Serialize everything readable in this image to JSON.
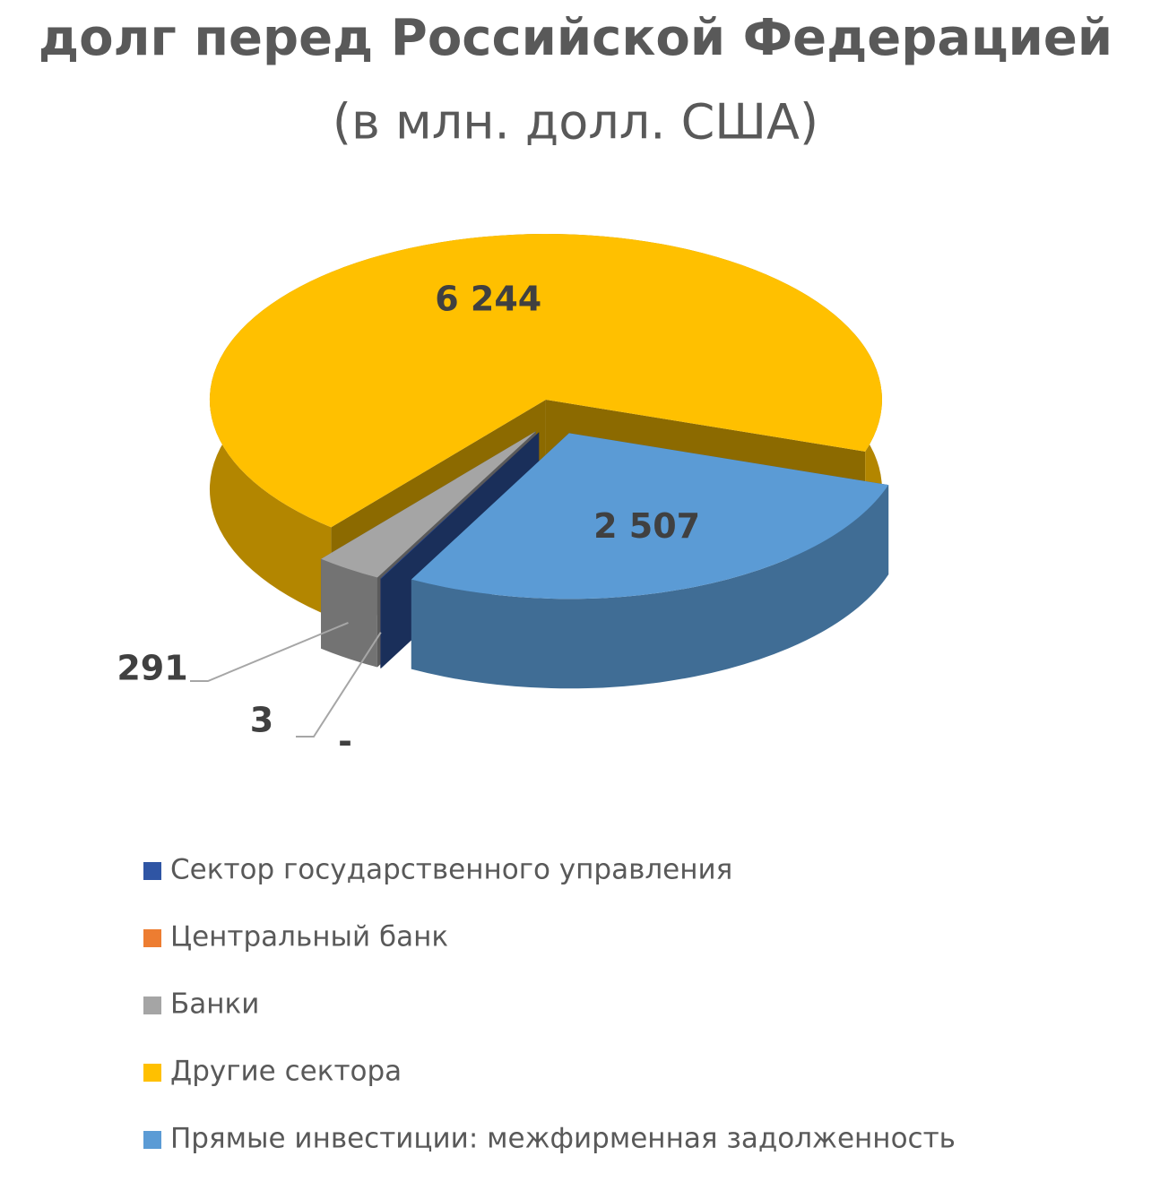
{
  "chart_data": {
    "type": "pie",
    "title": "долг перед Российской Федерацией",
    "subtitle": "(в млн. долл. США)",
    "categories": [
      "Сектор государственного управления",
      "Центральный банк",
      "Банки",
      "Другие сектора",
      "Прямые инвестиции: межфирменная задолженность"
    ],
    "values": [
      3,
      0,
      291,
      6244,
      2507
    ],
    "value_labels": [
      "3",
      "-",
      "291",
      "6 244",
      "2 507"
    ],
    "colors": [
      "#2f55a4",
      "#ed7d31",
      "#a5a5a5",
      "#ffc000",
      "#5b9bd5"
    ]
  }
}
